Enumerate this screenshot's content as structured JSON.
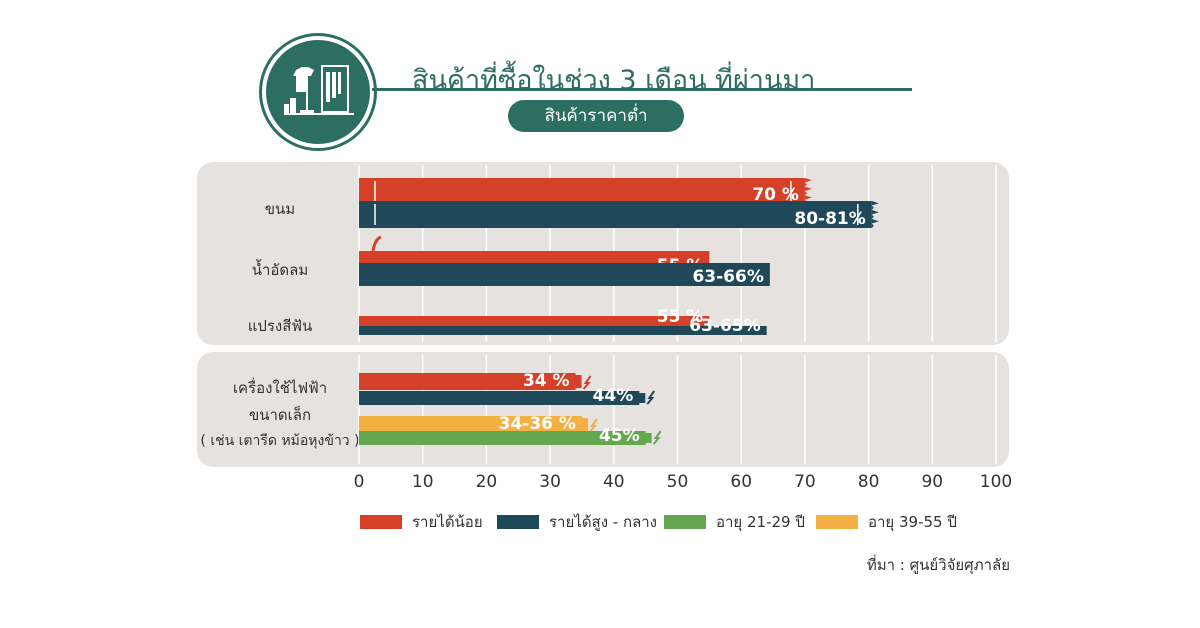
{
  "header": {
    "title": "สินค้าที่ซื้อในช่วง 3 เดือน ที่ผ่านมา",
    "subtitle": "สินค้าราคาต่ำ",
    "badge_icon": "clothes-shop-icon"
  },
  "source": "ที่มา : ศูนย์วิจัยศุภาลัย",
  "colors": {
    "low_income": "#d44128",
    "high_mid_income": "#1f4858",
    "age_21_29": "#63a84e",
    "age_39_55": "#f5b043",
    "panel": "#e6e2e0",
    "theme": "#2d6e62"
  },
  "chart_data": {
    "type": "bar",
    "orientation": "horizontal",
    "xlim": [
      0,
      100
    ],
    "xticks": [
      "0",
      "10",
      "20",
      "30",
      "40",
      "50",
      "60",
      "70",
      "80",
      "90",
      "100"
    ],
    "grid": true,
    "legend_position": "bottom",
    "legend": [
      {
        "name": "รายได้น้อย",
        "color": "#d44128"
      },
      {
        "name": "รายได้สูง - กลาง",
        "color": "#1f4858"
      },
      {
        "name": "อายุ 21-29 ปี",
        "color": "#63a84e"
      },
      {
        "name": "อายุ 39-55 ปี",
        "color": "#f5b043"
      }
    ],
    "groups": [
      {
        "category": "ขนม",
        "bars": [
          {
            "series": "รายได้น้อย",
            "value": 70,
            "label": "70 %"
          },
          {
            "series": "รายได้สูง - กลาง",
            "value": 80.5,
            "label": "80-81%"
          }
        ]
      },
      {
        "category": "น้ำอัดลม",
        "bars": [
          {
            "series": "รายได้น้อย",
            "value": 55,
            "label": "55 %"
          },
          {
            "series": "รายได้สูง - กลาง",
            "value": 64.5,
            "label": "63-66%"
          }
        ]
      },
      {
        "category": "แปรงสีฟัน",
        "bars": [
          {
            "series": "รายได้น้อย",
            "value": 55,
            "label": "55 %"
          },
          {
            "series": "รายได้สูง - กลาง",
            "value": 64,
            "label": "63-65%"
          }
        ]
      },
      {
        "category_lines": [
          "เครื่องใช้ไฟฟ้า",
          "ขนาดเล็ก",
          "( เช่น เตารีด หม้อหุงข้าว )"
        ],
        "bars": [
          {
            "series": "รายได้น้อย",
            "value": 34,
            "label": "34 %"
          },
          {
            "series": "รายได้สูง - กลาง",
            "value": 44,
            "label": "44%"
          },
          {
            "series": "อายุ 39-55 ปี",
            "value": 35,
            "label": "34-36 %"
          },
          {
            "series": "อายุ 21-29 ปี",
            "value": 45,
            "label": "45%"
          }
        ]
      }
    ]
  }
}
